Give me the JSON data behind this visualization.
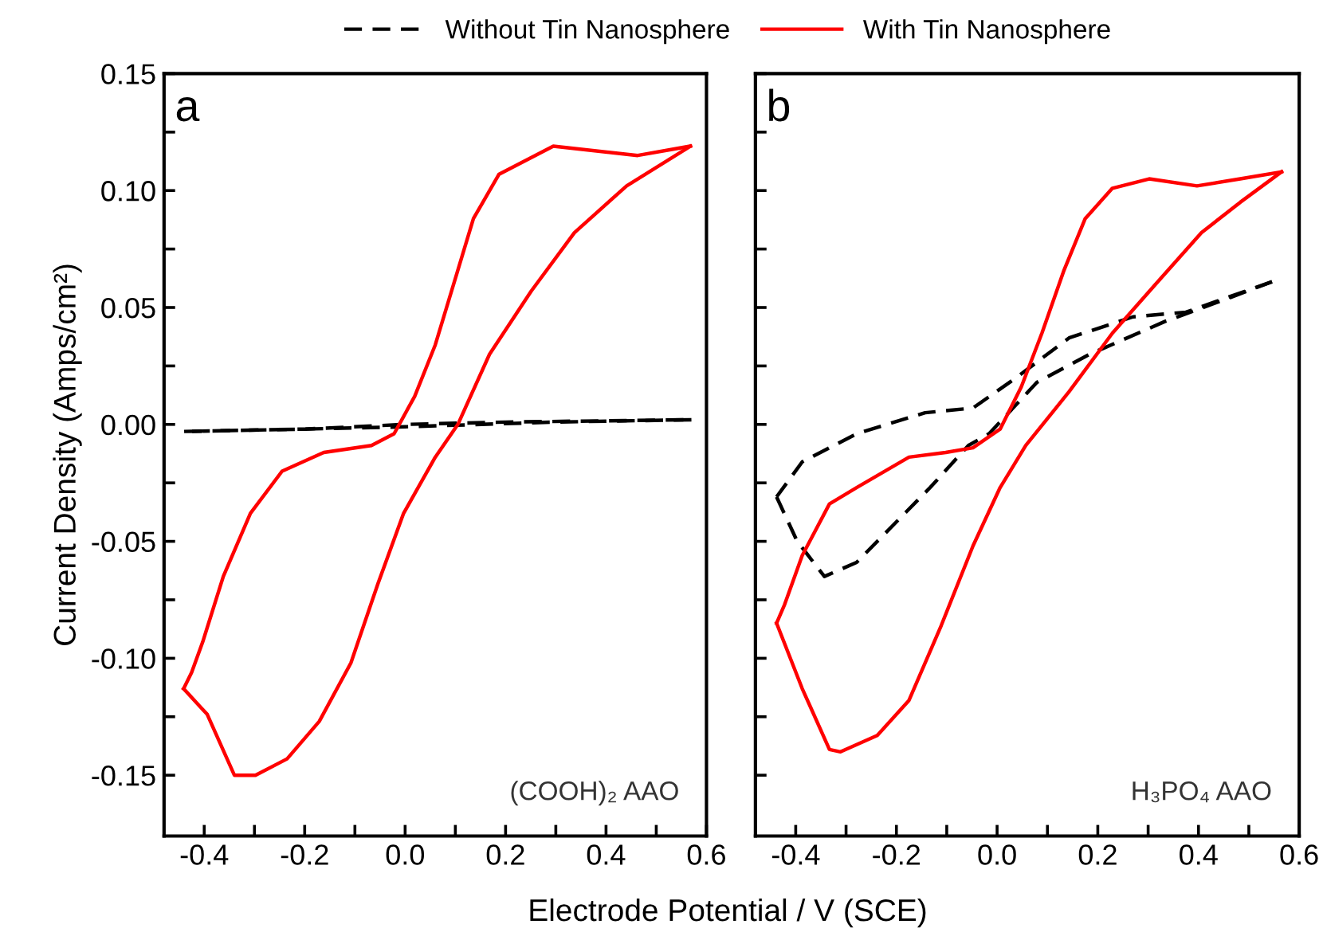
{
  "chart_data": [
    {
      "type": "line",
      "xlabel": "Electrode Potential / V (SCE)",
      "ylabel": "Current Density (Amps/cm²)",
      "legend": "top",
      "annotations": [
        "a",
        "(COOH)₂ AAO"
      ],
      "xlim": [
        -0.48,
        0.6
      ],
      "xticks": [
        {
          "value": -0.4,
          "label": "-0.4"
        },
        {
          "value": -0.3,
          "label": null
        },
        {
          "value": -0.2,
          "label": "-0.2"
        },
        {
          "value": -0.1,
          "label": null
        },
        {
          "value": 0.0,
          "label": "0.0"
        },
        {
          "value": 0.1,
          "label": null
        },
        {
          "value": 0.2,
          "label": "0.2"
        },
        {
          "value": 0.3,
          "label": null
        },
        {
          "value": 0.4,
          "label": "0.4"
        },
        {
          "value": 0.5,
          "label": null
        },
        {
          "value": 0.6,
          "label": "0.6"
        }
      ],
      "ylim": [
        -0.176,
        0.15
      ],
      "yticks": [
        {
          "value": -0.15,
          "label": "-0.15"
        },
        {
          "value": -0.125,
          "label": null
        },
        {
          "value": -0.1,
          "label": "-0.10"
        },
        {
          "value": -0.075,
          "label": null
        },
        {
          "value": -0.05,
          "label": "-0.05"
        },
        {
          "value": -0.025,
          "label": null
        },
        {
          "value": 0.0,
          "label": "0.00"
        },
        {
          "value": 0.025,
          "label": null
        },
        {
          "value": 0.05,
          "label": "0.05"
        },
        {
          "value": 0.075,
          "label": null
        },
        {
          "value": 0.1,
          "label": "0.10"
        },
        {
          "value": 0.125,
          "label": null
        },
        {
          "value": 0.15,
          "label": "0.15"
        }
      ],
      "series": [
        {
          "name": "Without Tin Nanosphere",
          "color": "#000000",
          "line_style": "dashed",
          "x": [
            -0.44,
            -0.2,
            0.0,
            0.2,
            0.57
          ],
          "values": [
            -0.003,
            -0.002,
            0.0,
            0.001,
            0.002
          ]
        },
        {
          "color": "#000000",
          "line_style": "dashed",
          "x": [
            0.57,
            0.3,
            0.0,
            -0.2,
            -0.44
          ],
          "values": [
            0.002,
            0.001,
            -0.001,
            -0.002,
            -0.003
          ]
        },
        {
          "name": "With Tin Nanosphere",
          "color": "#ff0000",
          "line_style": "solid",
          "x": [
            0.568,
            0.463,
            0.295,
            0.187,
            0.136,
            0.105,
            0.06,
            0.019,
            -0.022,
            -0.067,
            -0.162,
            -0.245,
            -0.308,
            -0.362,
            -0.403,
            -0.425,
            -0.441
          ],
          "values": [
            0.119,
            0.115,
            0.119,
            0.107,
            0.088,
            0.066,
            0.034,
            0.012,
            -0.004,
            -0.009,
            -0.012,
            -0.02,
            -0.038,
            -0.065,
            -0.093,
            -0.106,
            -0.113
          ]
        },
        {
          "color": "#ff0000",
          "line_style": "solid",
          "x": [
            -0.441,
            -0.394,
            -0.34,
            -0.298,
            -0.235,
            -0.171,
            -0.108,
            -0.054,
            -0.003,
            0.06,
            0.105,
            0.168,
            0.251,
            0.337,
            0.441,
            0.568
          ],
          "values": [
            -0.113,
            -0.124,
            -0.15,
            -0.15,
            -0.143,
            -0.127,
            -0.102,
            -0.068,
            -0.038,
            -0.014,
            0.0,
            0.03,
            0.057,
            0.082,
            0.102,
            0.119
          ]
        }
      ]
    },
    {
      "type": "line",
      "tick_labels": "x",
      "annotations": [
        "b",
        "H₃PO₄ AAO"
      ],
      "xlim": [
        -0.48,
        0.6
      ],
      "xticks": [
        {
          "value": -0.4,
          "label": "-0.4"
        },
        {
          "value": -0.3,
          "label": null
        },
        {
          "value": -0.2,
          "label": "-0.2"
        },
        {
          "value": -0.1,
          "label": null
        },
        {
          "value": 0.0,
          "label": "0.0"
        },
        {
          "value": 0.1,
          "label": null
        },
        {
          "value": 0.2,
          "label": "0.2"
        },
        {
          "value": 0.3,
          "label": null
        },
        {
          "value": 0.4,
          "label": "0.4"
        },
        {
          "value": 0.5,
          "label": null
        },
        {
          "value": 0.6,
          "label": "0.6"
        }
      ],
      "ylim": [
        -0.176,
        0.15
      ],
      "yticks": [
        {
          "value": -0.15,
          "label": null
        },
        {
          "value": -0.125,
          "label": null
        },
        {
          "value": -0.1,
          "label": null
        },
        {
          "value": -0.075,
          "label": null
        },
        {
          "value": -0.05,
          "label": null
        },
        {
          "value": -0.025,
          "label": null
        },
        {
          "value": 0.0,
          "label": null
        },
        {
          "value": 0.025,
          "label": null
        },
        {
          "value": 0.05,
          "label": null
        },
        {
          "value": 0.075,
          "label": null
        },
        {
          "value": 0.1,
          "label": null
        },
        {
          "value": 0.125,
          "label": null
        },
        {
          "value": 0.15,
          "label": null
        }
      ],
      "series": [
        {
          "color": "#000000",
          "line_style": "dashed",
          "x": [
            0.546,
            0.375,
            0.27,
            0.143,
            0.038,
            -0.048,
            -0.143,
            -0.279,
            -0.387,
            -0.438
          ],
          "values": [
            0.061,
            0.048,
            0.046,
            0.037,
            0.02,
            0.007,
            0.005,
            -0.004,
            -0.016,
            -0.031
          ]
        },
        {
          "color": "#000000",
          "line_style": "dashed",
          "x": [
            -0.438,
            -0.397,
            -0.343,
            -0.279,
            -0.206,
            -0.133,
            -0.057,
            -0.016,
            0.079,
            0.184,
            0.333,
            0.46,
            0.546
          ],
          "values": [
            -0.031,
            -0.05,
            -0.065,
            -0.059,
            -0.043,
            -0.027,
            -0.009,
            -0.004,
            0.018,
            0.03,
            0.044,
            0.054,
            0.061
          ]
        },
        {
          "color": "#ff0000",
          "line_style": "solid",
          "x": [
            0.565,
            0.483,
            0.397,
            0.302,
            0.229,
            0.175,
            0.133,
            0.089,
            0.048,
            0.006,
            -0.048,
            -0.102,
            -0.175,
            -0.279,
            -0.333,
            -0.387,
            -0.422,
            -0.438
          ],
          "values": [
            0.108,
            0.105,
            0.102,
            0.105,
            0.101,
            0.088,
            0.066,
            0.039,
            0.016,
            -0.002,
            -0.01,
            -0.012,
            -0.014,
            -0.027,
            -0.034,
            -0.056,
            -0.077,
            -0.085
          ]
        },
        {
          "color": "#ff0000",
          "line_style": "solid",
          "x": [
            -0.438,
            -0.387,
            -0.333,
            -0.311,
            -0.238,
            -0.175,
            -0.111,
            -0.048,
            0.006,
            0.057,
            0.143,
            0.229,
            0.311,
            0.406,
            0.483,
            0.565
          ],
          "values": [
            -0.085,
            -0.113,
            -0.139,
            -0.14,
            -0.133,
            -0.118,
            -0.086,
            -0.052,
            -0.027,
            -0.009,
            0.014,
            0.039,
            0.059,
            0.082,
            0.095,
            0.108
          ]
        }
      ]
    }
  ]
}
